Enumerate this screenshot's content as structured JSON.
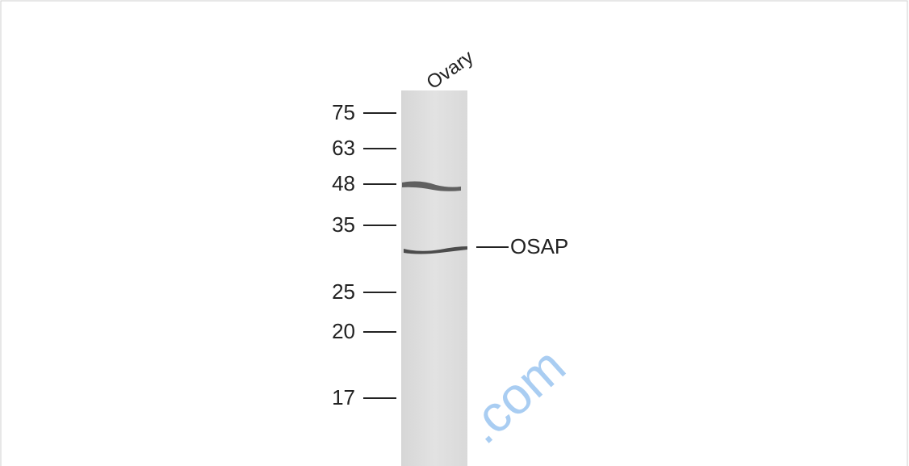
{
  "lane_label": "Ovary",
  "markers": [
    "75",
    "63",
    "48",
    "35",
    "25",
    "20",
    "17"
  ],
  "band_label": "OSAP",
  "watermark": ".com"
}
